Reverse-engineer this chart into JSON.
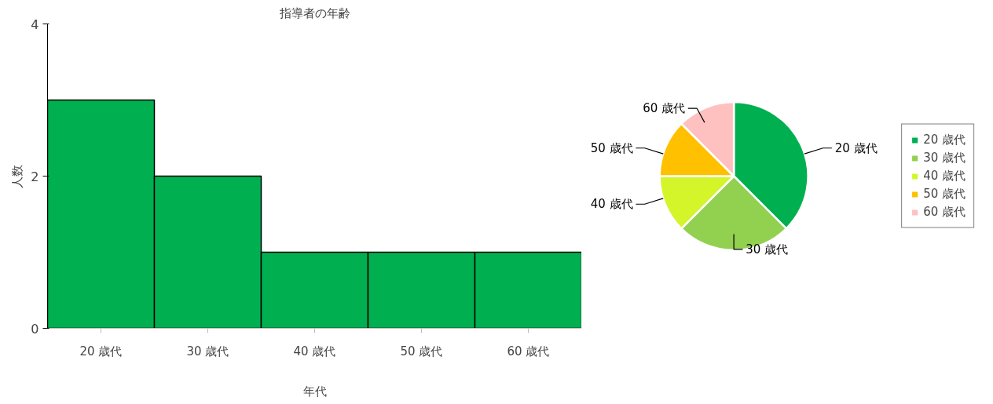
{
  "chart_data": [
    {
      "type": "bar",
      "title": "指導者の年齢",
      "xlabel": "年代",
      "ylabel": "人数",
      "categories": [
        "20 歳代",
        "30 歳代",
        "40 歳代",
        "50 歳代",
        "60 歳代"
      ],
      "series": [
        {
          "color": "#00b050",
          "values": [
            3,
            2,
            1,
            1,
            1
          ]
        }
      ],
      "ylim": [
        0,
        4
      ],
      "yticks": [
        0,
        2,
        4
      ],
      "grid": false,
      "legend": false
    },
    {
      "type": "pie",
      "categories": [
        "20 歳代",
        "30 歳代",
        "40 歳代",
        "50 歳代",
        "60 歳代"
      ],
      "values": [
        37.5,
        25,
        12.5,
        12.5,
        12.5
      ],
      "colors": [
        "#00b050",
        "#92d050",
        "#d4f52a",
        "#ffc000",
        "#ffc0c0"
      ],
      "legend": "right"
    }
  ]
}
